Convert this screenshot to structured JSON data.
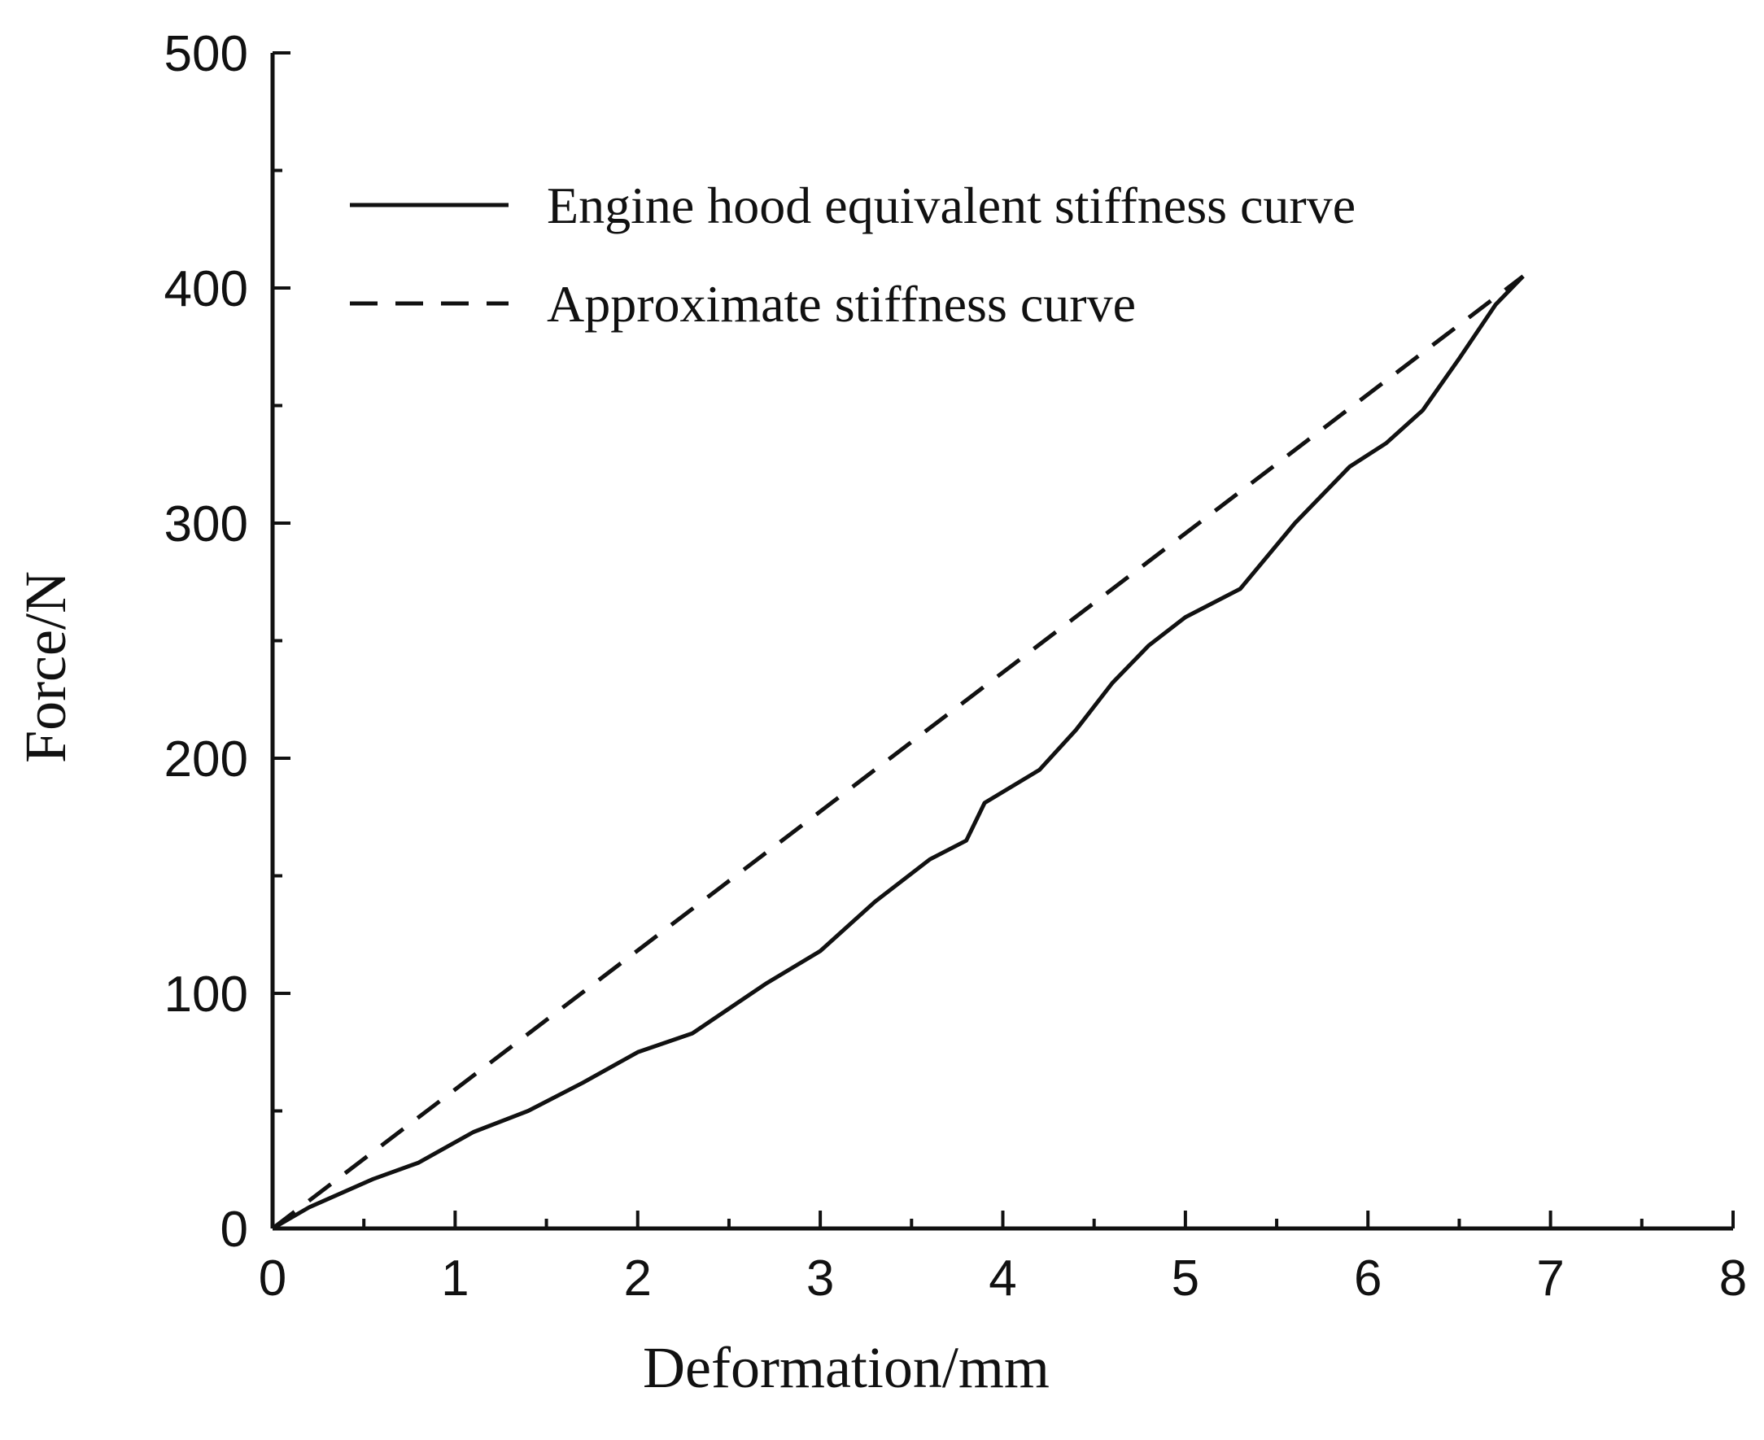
{
  "chart_data": {
    "type": "line",
    "xlabel": "Deformation/mm",
    "ylabel": "Force/N",
    "xlim": [
      0,
      8
    ],
    "ylim": [
      0,
      500
    ],
    "xticks": [
      0,
      1,
      2,
      3,
      4,
      5,
      6,
      7,
      8
    ],
    "yticks": [
      0,
      100,
      200,
      300,
      400,
      500
    ],
    "grid": false,
    "legend_position": "top",
    "series": [
      {
        "name": "Engine hood equivalent stiffness curve",
        "style": "solid",
        "color": "#111111",
        "x": [
          0,
          0.2,
          0.55,
          0.8,
          1.1,
          1.4,
          1.7,
          2.0,
          2.3,
          2.7,
          3.0,
          3.3,
          3.6,
          3.8,
          3.9,
          4.2,
          4.4,
          4.6,
          4.8,
          5.0,
          5.3,
          5.6,
          5.9,
          6.1,
          6.3,
          6.5,
          6.7,
          6.85
        ],
        "y": [
          0,
          9,
          21,
          28,
          41,
          50,
          62,
          75,
          83,
          104,
          118,
          139,
          157,
          165,
          181,
          195,
          212,
          232,
          248,
          260,
          272,
          300,
          324,
          334,
          348,
          370,
          393,
          405
        ]
      },
      {
        "name": "Approximate stiffness curve",
        "style": "dashed",
        "color": "#111111",
        "x": [
          0,
          6.85
        ],
        "y": [
          0,
          405
        ]
      }
    ]
  }
}
